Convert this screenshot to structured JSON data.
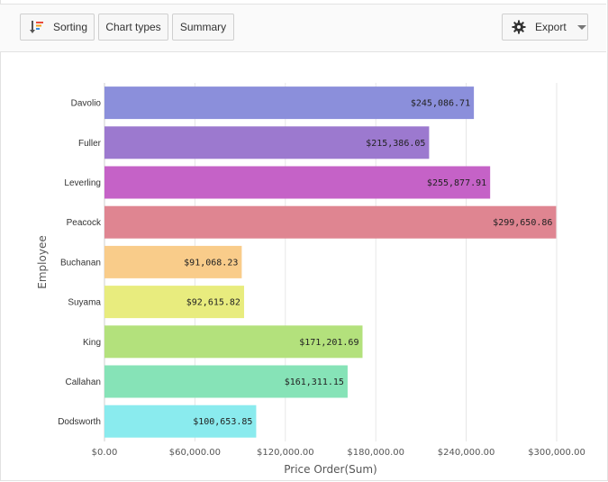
{
  "toolbar": {
    "sorting_label": "Sorting",
    "chart_types_label": "Chart types",
    "summary_label": "Summary",
    "export_label": "Export",
    "icons": [
      "sorting-icon",
      "gear-icon",
      "chevron-down-icon"
    ]
  },
  "chart_data": {
    "type": "bar",
    "orientation": "horizontal",
    "categories": [
      "Davolio",
      "Fuller",
      "Leverling",
      "Peacock",
      "Buchanan",
      "Suyama",
      "King",
      "Callahan",
      "Dodsworth"
    ],
    "values": [
      245086.71,
      215386.05,
      255877.91,
      299650.86,
      91068.23,
      92615.82,
      171201.69,
      161311.15,
      100653.85
    ],
    "data_labels": [
      "$245,086.71",
      "$215,386.05",
      "$255,877.91",
      "$299,650.86",
      "$91,068.23",
      "$92,615.82",
      "$171,201.69",
      "$161,311.15",
      "$100,653.85"
    ],
    "colors": [
      "#8b8fdb",
      "#9c79cf",
      "#c562c7",
      "#df8591",
      "#f9cc8a",
      "#e8ec7e",
      "#b3e17c",
      "#86e3b7",
      "#8aebee"
    ],
    "xlabel": "Price Order(Sum)",
    "ylabel": "Employee",
    "xlim": [
      0,
      300000
    ],
    "x_ticks": [
      0,
      60000,
      120000,
      180000,
      240000,
      300000
    ],
    "x_tick_labels": [
      "$0.00",
      "$60,000.00",
      "$120,000.00",
      "$180,000.00",
      "$240,000.00",
      "$300,000.00"
    ],
    "grid": true
  }
}
